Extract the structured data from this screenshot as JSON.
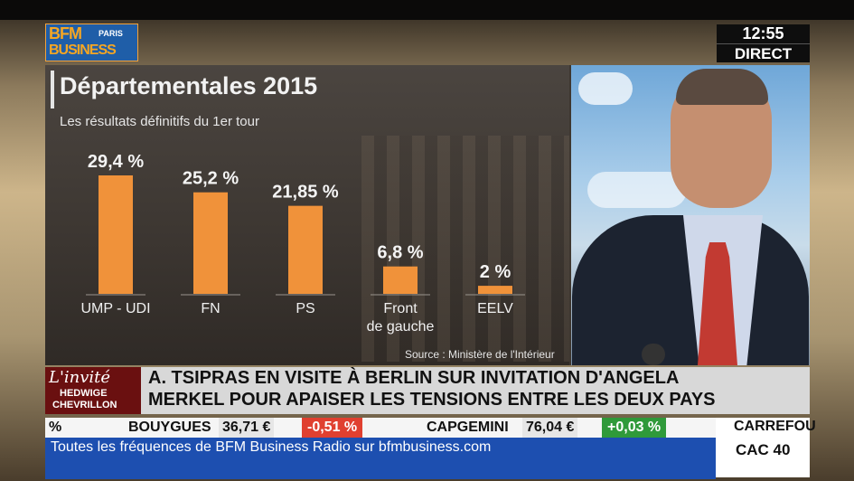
{
  "channel": {
    "logo_line1": "BFM",
    "logo_paris": "PARIS",
    "logo_line2": "BUSINESS",
    "time": "12:55",
    "live": "DIRECT"
  },
  "chart_data": {
    "type": "bar",
    "title": "Départementales 2015",
    "subtitle": "Les résultats définitifs du 1er tour",
    "source": "Source : Ministère de l'Intérieur",
    "categories": [
      "UMP - UDI",
      "FN",
      "PS",
      "Front\nde gauche",
      "EELV"
    ],
    "category_lines": [
      [
        "UMP - UDI"
      ],
      [
        "FN"
      ],
      [
        "PS"
      ],
      [
        "Front",
        "de gauche"
      ],
      [
        "EELV"
      ]
    ],
    "values": [
      29.4,
      25.2,
      21.85,
      6.8,
      2
    ],
    "value_labels": [
      "29,4 %",
      "25,2 %",
      "21,85 %",
      "6,8 %",
      "2 %"
    ],
    "ylim": [
      0,
      29.4
    ],
    "bar_color": "#f0923a",
    "grid": false
  },
  "lower_third": {
    "guest_invite": "L'invité",
    "guest_first": "HEDWIGE",
    "guest_last": "CHEVRILLON",
    "headline_line1": "A. TSIPRAS EN VISITE À BERLIN SUR INVITATION D'ANGELA",
    "headline_line2": "MERKEL POUR APAISER LES TENSIONS ENTRE LES DEUX PAYS"
  },
  "ticker": {
    "lead_fragment": "%",
    "items": [
      {
        "name": "BOUYGUES",
        "price": "36,71 €",
        "change": "-0,51 %",
        "direction": "down"
      },
      {
        "name": "CAPGEMINI",
        "price": "76,04 €",
        "change": "+0,03 %",
        "direction": "up"
      }
    ],
    "index_top": "CARREFOU",
    "index_main": "CAC 40",
    "crawl": "Toutes les fréquences de BFM Business Radio sur bfmbusiness.com",
    "down_color": "#e04030",
    "up_color": "#2f9a3a",
    "crawl_color": "#1d4fb0"
  }
}
